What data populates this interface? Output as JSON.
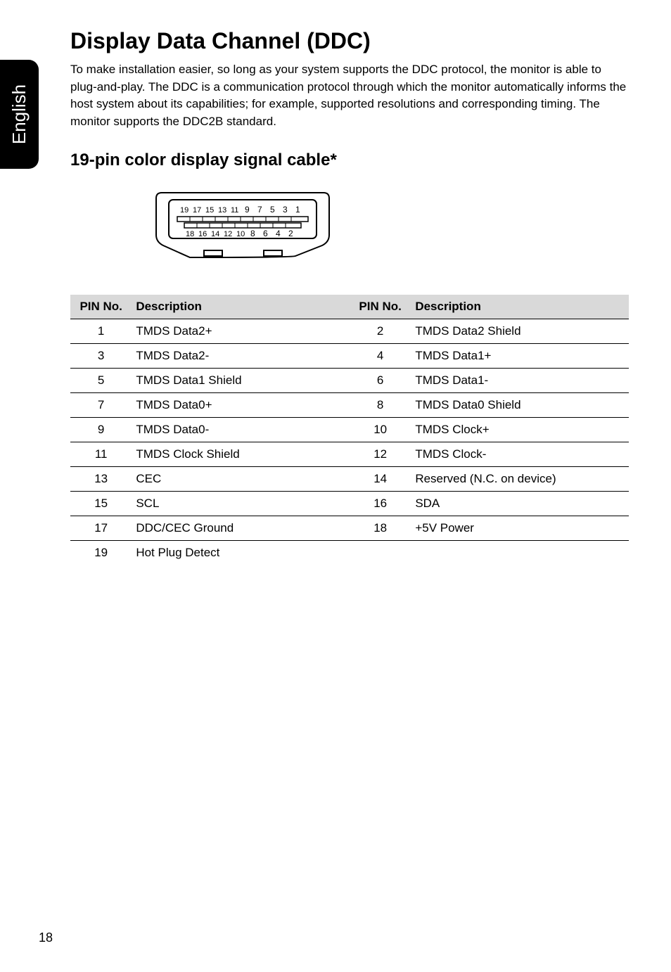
{
  "side_tab": {
    "label": "English"
  },
  "heading": "Display Data Channel (DDC)",
  "intro": "To make installation easier, so long as your system supports the DDC protocol, the monitor is able to plug-and-play. The DDC is a communication protocol through which the monitor automatically informs the host system about its capabilities; for example, supported resolutions and corresponding timing. The monitor supports the DDC2B standard.",
  "subheading": "19-pin color display signal cable*",
  "connector_diagram": {
    "top_pins": [
      "19",
      "17",
      "15",
      "13",
      "11",
      "9",
      "7",
      "5",
      "3",
      "1"
    ],
    "bottom_pins": [
      "18",
      "16",
      "14",
      "12",
      "10",
      "8",
      "6",
      "4",
      "2"
    ]
  },
  "pin_table": {
    "headers": {
      "pin": "PIN No.",
      "desc": "Description"
    },
    "rows": [
      {
        "p1": "1",
        "d1": "TMDS Data2+",
        "p2": "2",
        "d2": "TMDS Data2 Shield"
      },
      {
        "p1": "3",
        "d1": "TMDS Data2-",
        "p2": "4",
        "d2": "TMDS Data1+"
      },
      {
        "p1": "5",
        "d1": "TMDS Data1 Shield",
        "p2": "6",
        "d2": "TMDS Data1-"
      },
      {
        "p1": "7",
        "d1": "TMDS Data0+",
        "p2": "8",
        "d2": "TMDS Data0 Shield"
      },
      {
        "p1": "9",
        "d1": "TMDS Data0-",
        "p2": "10",
        "d2": "TMDS Clock+"
      },
      {
        "p1": "11",
        "d1": "TMDS Clock Shield",
        "p2": "12",
        "d2": "TMDS Clock-"
      },
      {
        "p1": "13",
        "d1": "CEC",
        "p2": "14",
        "d2": "Reserved (N.C. on device)"
      },
      {
        "p1": "15",
        "d1": "SCL",
        "p2": "16",
        "d2": "SDA"
      },
      {
        "p1": "17",
        "d1": "DDC/CEC Ground",
        "p2": "18",
        "d2": "+5V Power"
      },
      {
        "p1": "19",
        "d1": "Hot Plug Detect",
        "p2": "",
        "d2": ""
      }
    ]
  },
  "page_number": "18"
}
